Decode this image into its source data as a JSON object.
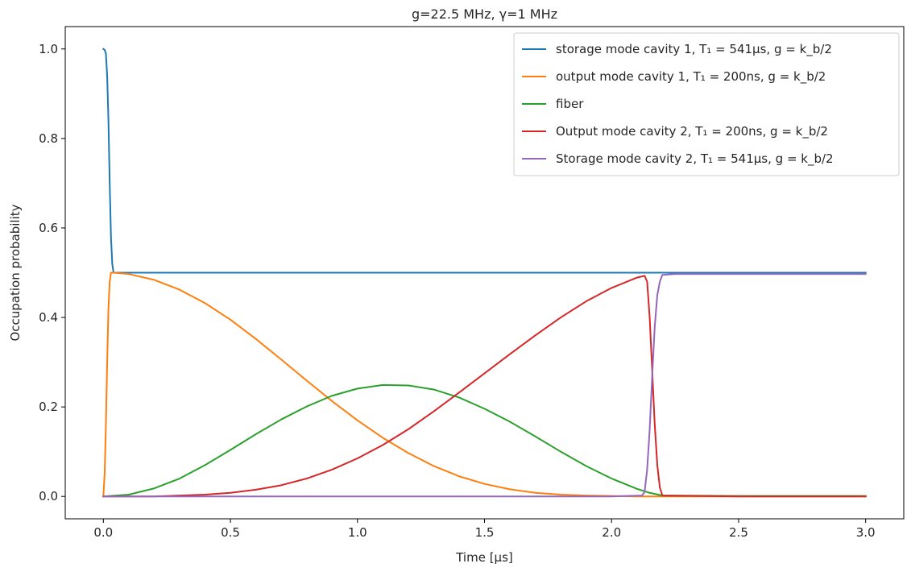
{
  "chart_data": {
    "type": "line",
    "title": "g=22.5 MHz, γ=1 MHz",
    "xlabel": "Time [μs]",
    "ylabel": "Occupation probability",
    "xlim": [
      -0.15,
      3.15
    ],
    "ylim": [
      -0.05,
      1.05
    ],
    "xticks": [
      0.0,
      0.5,
      1.0,
      1.5,
      2.0,
      2.5,
      3.0
    ],
    "xtick_labels": [
      "0.0",
      "0.5",
      "1.0",
      "1.5",
      "2.0",
      "2.5",
      "3.0"
    ],
    "yticks": [
      0.0,
      0.2,
      0.4,
      0.6,
      0.8,
      1.0
    ],
    "ytick_labels": [
      "0.0",
      "0.2",
      "0.4",
      "0.6",
      "0.8",
      "1.0"
    ],
    "grid": false,
    "legend_position": "top-right",
    "series": [
      {
        "name": "storage mode cavity 1, T₁ = 541μs, g = k_b/2",
        "color": "#1f77b4",
        "x": [
          0.0,
          0.005,
          0.01,
          0.015,
          0.02,
          0.025,
          0.03,
          0.035,
          0.04,
          0.1,
          0.5,
          1.0,
          1.5,
          2.0,
          2.5,
          3.0
        ],
        "y": [
          1.0,
          0.998,
          0.99,
          0.94,
          0.84,
          0.7,
          0.58,
          0.52,
          0.5,
          0.5,
          0.5,
          0.5,
          0.5,
          0.5,
          0.5,
          0.5
        ]
      },
      {
        "name": "output mode cavity 1, T₁ = 200ns, g = k_b/2",
        "color": "#ff7f0e",
        "x": [
          0.0,
          0.005,
          0.01,
          0.015,
          0.02,
          0.025,
          0.03,
          0.04,
          0.1,
          0.2,
          0.3,
          0.4,
          0.5,
          0.6,
          0.7,
          0.8,
          0.9,
          1.0,
          1.1,
          1.2,
          1.3,
          1.4,
          1.5,
          1.6,
          1.7,
          1.8,
          1.9,
          2.0,
          2.1,
          2.2,
          2.5,
          3.0
        ],
        "y": [
          0.0,
          0.05,
          0.16,
          0.3,
          0.42,
          0.48,
          0.5,
          0.5,
          0.497,
          0.484,
          0.462,
          0.432,
          0.395,
          0.352,
          0.306,
          0.259,
          0.213,
          0.17,
          0.131,
          0.097,
          0.068,
          0.045,
          0.028,
          0.016,
          0.008,
          0.004,
          0.002,
          0.001,
          0.0,
          0.0,
          0.0,
          0.0
        ]
      },
      {
        "name": "fiber",
        "color": "#2ca02c",
        "x": [
          0.0,
          0.1,
          0.2,
          0.3,
          0.4,
          0.5,
          0.6,
          0.7,
          0.8,
          0.9,
          1.0,
          1.1,
          1.2,
          1.3,
          1.4,
          1.5,
          1.6,
          1.7,
          1.8,
          1.9,
          2.0,
          2.1,
          2.15,
          2.2,
          2.5,
          3.0
        ],
        "y": [
          0.0,
          0.004,
          0.018,
          0.04,
          0.07,
          0.104,
          0.139,
          0.172,
          0.201,
          0.225,
          0.241,
          0.249,
          0.248,
          0.239,
          0.221,
          0.196,
          0.167,
          0.134,
          0.1,
          0.068,
          0.04,
          0.017,
          0.008,
          0.002,
          0.001,
          0.001
        ]
      },
      {
        "name": "Output mode cavity 2, T₁ = 200ns, g = k_b/2",
        "color": "#d62728",
        "x": [
          0.0,
          0.2,
          0.3,
          0.4,
          0.5,
          0.6,
          0.7,
          0.8,
          0.9,
          1.0,
          1.1,
          1.2,
          1.3,
          1.4,
          1.5,
          1.6,
          1.7,
          1.8,
          1.9,
          2.0,
          2.1,
          2.13,
          2.14,
          2.15,
          2.16,
          2.17,
          2.18,
          2.19,
          2.2,
          2.5,
          3.0
        ],
        "y": [
          0.0,
          0.0,
          0.002,
          0.004,
          0.008,
          0.015,
          0.025,
          0.04,
          0.06,
          0.085,
          0.115,
          0.15,
          0.19,
          0.232,
          0.275,
          0.318,
          0.36,
          0.4,
          0.436,
          0.466,
          0.489,
          0.493,
          0.48,
          0.4,
          0.28,
          0.16,
          0.07,
          0.02,
          0.002,
          0.0,
          0.0
        ]
      },
      {
        "name": "Storage mode cavity 2, T₁ = 541μs, g = k_b/2",
        "color": "#9467bd",
        "x": [
          0.0,
          1.0,
          2.0,
          2.12,
          2.13,
          2.14,
          2.15,
          2.16,
          2.17,
          2.18,
          2.19,
          2.2,
          2.25,
          2.5,
          3.0
        ],
        "y": [
          0.0,
          0.0,
          0.0,
          0.002,
          0.01,
          0.06,
          0.15,
          0.27,
          0.38,
          0.45,
          0.48,
          0.495,
          0.497,
          0.497,
          0.497
        ]
      }
    ]
  }
}
